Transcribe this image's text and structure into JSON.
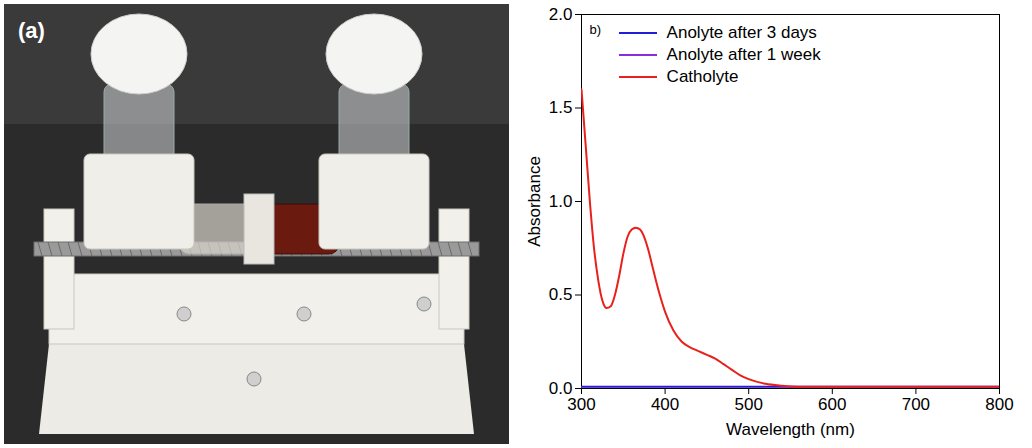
{
  "photo": {
    "label": "(a)"
  },
  "chart_data": {
    "type": "line",
    "panel_label": "b)",
    "xlabel": "Wavelength (nm)",
    "ylabel": "Absorbance",
    "x": [
      300,
      305,
      310,
      315,
      320,
      325,
      330,
      335,
      340,
      345,
      350,
      355,
      360,
      365,
      370,
      375,
      380,
      385,
      390,
      395,
      400,
      410,
      420,
      430,
      440,
      450,
      460,
      470,
      480,
      490,
      500,
      520,
      540,
      560,
      580,
      600,
      650,
      700,
      750,
      800
    ],
    "series": [
      {
        "name": "Anolyte after 3 days",
        "color": "#1f1fd6",
        "values": [
          0.01,
          0.01,
          0.01,
          0.01,
          0.01,
          0.01,
          0.01,
          0.01,
          0.01,
          0.01,
          0.01,
          0.01,
          0.01,
          0.01,
          0.01,
          0.01,
          0.01,
          0.01,
          0.01,
          0.01,
          0.01,
          0.01,
          0.01,
          0.01,
          0.01,
          0.01,
          0.01,
          0.01,
          0.01,
          0.01,
          0.01,
          0.01,
          0.01,
          0.01,
          0.01,
          0.01,
          0.01,
          0.01,
          0.01,
          0.01
        ]
      },
      {
        "name": "Anolyte after 1 week",
        "color": "#8a2be2",
        "values": [
          0,
          0,
          0,
          0,
          0,
          0,
          0,
          0,
          0,
          0,
          0,
          0,
          0,
          0,
          0,
          0,
          0,
          0,
          0,
          0,
          0,
          0,
          0,
          0,
          0,
          0,
          0,
          0,
          0,
          0,
          0,
          0,
          0,
          0,
          0,
          0,
          0,
          0,
          0,
          0
        ]
      },
      {
        "name": "Catholyte",
        "color": "#e8211c",
        "values": [
          1.6,
          1.3,
          1.0,
          0.75,
          0.58,
          0.47,
          0.43,
          0.44,
          0.5,
          0.6,
          0.72,
          0.81,
          0.85,
          0.86,
          0.85,
          0.81,
          0.74,
          0.65,
          0.56,
          0.48,
          0.41,
          0.31,
          0.25,
          0.22,
          0.2,
          0.18,
          0.16,
          0.13,
          0.1,
          0.07,
          0.05,
          0.025,
          0.015,
          0.01,
          0.01,
          0.01,
          0.01,
          0.01,
          0.01,
          0.01
        ]
      }
    ],
    "xlim": [
      300,
      800
    ],
    "xticks": [
      300,
      400,
      500,
      600,
      700,
      800
    ],
    "ylim": [
      0,
      2
    ],
    "yticks": [
      {
        "value": 0,
        "label": "0.0"
      },
      {
        "value": 0.5,
        "label": "0.5"
      },
      {
        "value": 1,
        "label": "1.0"
      },
      {
        "value": 1.5,
        "label": "1.5"
      },
      {
        "value": 2,
        "label": "2.0"
      }
    ],
    "legend": "top-left",
    "grid": false
  }
}
